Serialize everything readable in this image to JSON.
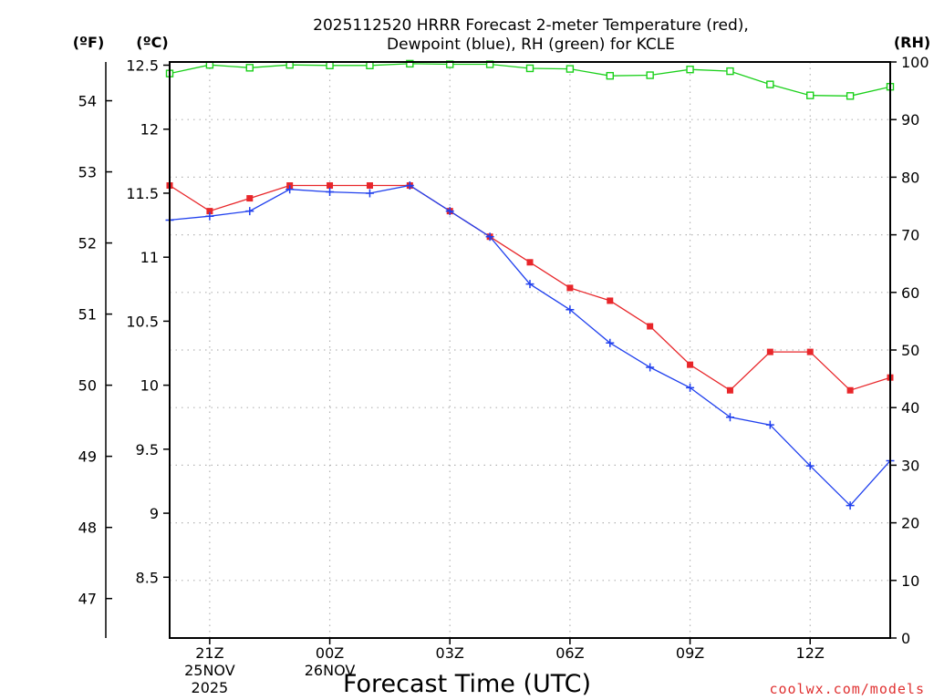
{
  "chart_data": {
    "type": "line",
    "title_line1": "2025112520 HRRR Forecast 2-meter Temperature (red),",
    "title_line2": "Dewpoint (blue), RH (green) for KCLE",
    "xlabel": "Forecast Time (UTC)",
    "credit": "coolwx.com/models",
    "units": {
      "fahrenheit": "(ºF)",
      "celsius": "(ºC)",
      "rh": "(RH)"
    },
    "x_hours": [
      0,
      1,
      2,
      3,
      4,
      5,
      6,
      7,
      8,
      9,
      10,
      11,
      12,
      13,
      14,
      15,
      16,
      17,
      18
    ],
    "x_ticks": [
      {
        "hour": 1,
        "lines": [
          "21Z",
          "25NOV",
          "2025"
        ]
      },
      {
        "hour": 4,
        "lines": [
          "00Z",
          "26NOV"
        ]
      },
      {
        "hour": 7,
        "lines": [
          "03Z"
        ]
      },
      {
        "hour": 10,
        "lines": [
          "06Z"
        ]
      },
      {
        "hour": 13,
        "lines": [
          "09Z"
        ]
      },
      {
        "hour": 16,
        "lines": [
          "12Z"
        ]
      }
    ],
    "c_axis": {
      "range": [
        8.025,
        12.525
      ],
      "ticks": [
        "8.5",
        "9",
        "9.5",
        "10",
        "10.5",
        "11",
        "11.5",
        "12",
        "12.5"
      ]
    },
    "f_axis": {
      "ticks": [
        "47",
        "48",
        "49",
        "50",
        "51",
        "52",
        "53",
        "54"
      ]
    },
    "rh_axis": {
      "range": [
        0,
        100
      ],
      "ticks": [
        "0",
        "10",
        "20",
        "30",
        "40",
        "50",
        "60",
        "70",
        "80",
        "90",
        "100"
      ]
    },
    "series": [
      {
        "name": "Temperature",
        "unit": "C",
        "color": "#e8262a",
        "marker": "square",
        "values": [
          11.56,
          11.36,
          11.46,
          11.56,
          11.56,
          11.56,
          11.56,
          11.36,
          11.16,
          10.96,
          10.76,
          10.66,
          10.46,
          10.16,
          9.96,
          10.26,
          10.26,
          9.96,
          10.06
        ]
      },
      {
        "name": "Dewpoint",
        "unit": "C",
        "color": "#2040ee",
        "marker": "plus",
        "values": [
          11.29,
          11.32,
          11.36,
          11.53,
          11.51,
          11.5,
          11.56,
          11.36,
          11.16,
          10.79,
          10.59,
          10.33,
          10.14,
          9.98,
          9.75,
          9.69,
          9.37,
          9.06,
          9.41
        ]
      },
      {
        "name": "Relative Humidity",
        "unit": "%",
        "color": "#1ad01a",
        "marker": "open-square",
        "values": [
          98.0,
          99.5,
          99.0,
          99.5,
          99.4,
          99.4,
          99.7,
          99.6,
          99.6,
          98.9,
          98.8,
          97.6,
          97.7,
          98.7,
          98.4,
          96.1,
          94.2,
          94.1,
          95.7
        ]
      }
    ]
  }
}
